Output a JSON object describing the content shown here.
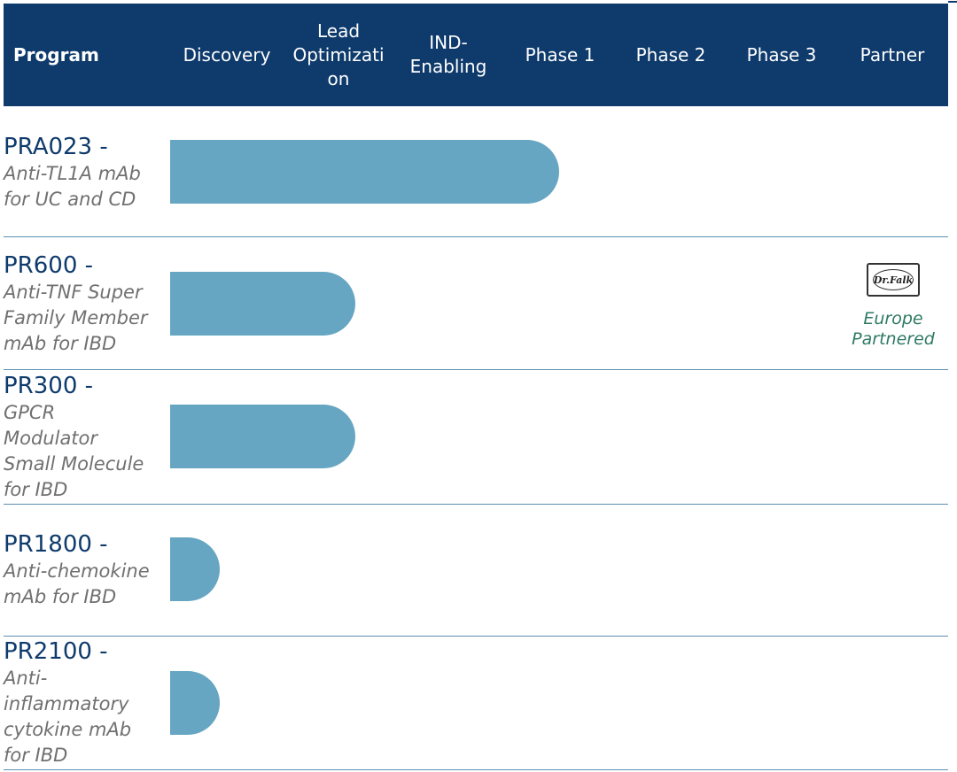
{
  "header": {
    "program": "Program",
    "stages": [
      "Discovery",
      "Lead\nOptimizati\non",
      "IND-\nEnabling",
      "Phase 1",
      "Phase 2",
      "Phase 3"
    ],
    "partner": "Partner"
  },
  "colors": {
    "header_bg": "#0f3b6c",
    "bar": "#66a6c2",
    "partner_text": "#2e7a63"
  },
  "chart_data": {
    "type": "bar",
    "orientation": "horizontal",
    "stages": [
      "Discovery",
      "Lead Optimization",
      "IND-Enabling",
      "Phase 1",
      "Phase 2",
      "Phase 3"
    ],
    "programs": [
      {
        "name": "PRA023 -",
        "description": "Anti-TL1A mAb\nfor UC and CD",
        "progress_stages": 3.5,
        "partner": null
      },
      {
        "name": "PR600 -",
        "description": "Anti-TNF Super\nFamily Member\nmAb for IBD",
        "progress_stages": 1.67,
        "partner": {
          "logo": "Dr.Falk",
          "text": "Europe\nPartnered"
        }
      },
      {
        "name": "PR300 -",
        "description": "GPCR\nModulator\nSmall Molecule\nfor IBD",
        "progress_stages": 1.67,
        "partner": null
      },
      {
        "name": "PR1800 -",
        "description": "Anti-chemokine\nmAb for IBD",
        "progress_stages": 0.44,
        "partner": null
      },
      {
        "name": "PR2100 -",
        "description": "Anti-\ninflammatory\ncytokine mAb\nfor IBD",
        "progress_stages": 0.44,
        "partner": null
      }
    ]
  }
}
